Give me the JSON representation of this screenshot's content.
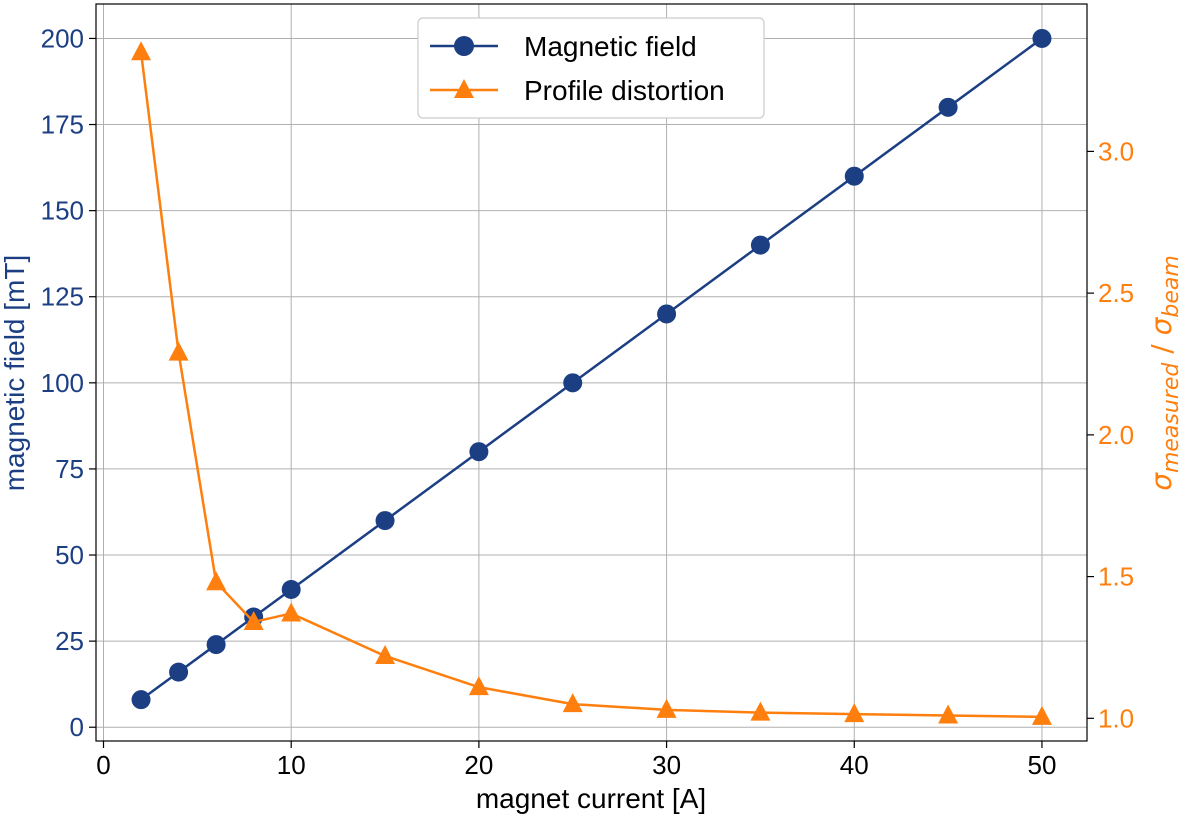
{
  "chart_data": {
    "type": "line",
    "title": "",
    "xlabel": "magnet current [A]",
    "xlim": [
      -0.4,
      52.4
    ],
    "xticks": [
      0,
      10,
      20,
      30,
      40,
      50
    ],
    "grid": true,
    "legend_position": "top-center",
    "left_axis": {
      "label": "magnetic field [mT]",
      "ylim": [
        -4,
        210
      ],
      "ticks": [
        0,
        25,
        50,
        75,
        100,
        125,
        150,
        175,
        200
      ],
      "color": "#1c3f84"
    },
    "right_axis": {
      "label_sigma": "σ",
      "label_sub_measured": "measured",
      "label_slash": " / ",
      "label_sub_beam": "beam",
      "ylim": [
        0.92,
        3.52
      ],
      "ticks": [
        1.0,
        1.5,
        2.0,
        2.5,
        3.0
      ],
      "tick_labels": [
        "1.0",
        "1.5",
        "2.0",
        "2.5",
        "3.0"
      ],
      "color": "#ff7f0e"
    },
    "series": [
      {
        "name": "Magnetic field",
        "axis": "left",
        "marker": "circle",
        "color": "#1c3f84",
        "x": [
          2,
          4,
          6,
          8,
          10,
          15,
          20,
          25,
          30,
          35,
          40,
          45,
          50
        ],
        "values": [
          8,
          16,
          24,
          32,
          40,
          60,
          80,
          100,
          120,
          140,
          160,
          180,
          200
        ]
      },
      {
        "name": "Profile distortion",
        "axis": "right",
        "marker": "triangle",
        "color": "#ff7f0e",
        "x": [
          2,
          4,
          6,
          8,
          10,
          15,
          20,
          25,
          30,
          35,
          40,
          45,
          50
        ],
        "values": [
          3.35,
          2.29,
          1.48,
          1.34,
          1.37,
          1.22,
          1.11,
          1.05,
          1.03,
          1.02,
          1.015,
          1.01,
          1.005
        ]
      }
    ]
  }
}
